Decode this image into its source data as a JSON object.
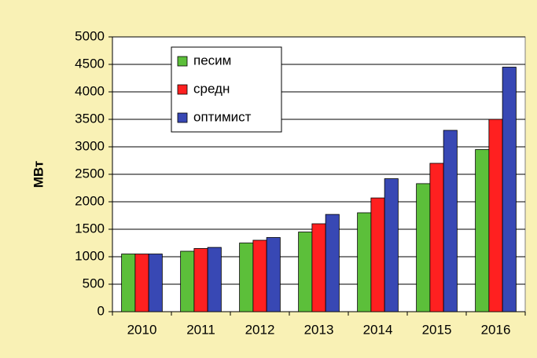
{
  "chart_data": {
    "type": "bar",
    "y_label": "МВт",
    "categories": [
      "2010",
      "2011",
      "2012",
      "2013",
      "2014",
      "2015",
      "2016"
    ],
    "series": [
      {
        "name": "песим",
        "color": "#5cbf3a",
        "values": [
          1050,
          1100,
          1250,
          1450,
          1800,
          2330,
          2950
        ]
      },
      {
        "name": "средн",
        "color": "#ff2020",
        "values": [
          1050,
          1150,
          1300,
          1600,
          2070,
          2700,
          3500
        ]
      },
      {
        "name": "оптимист",
        "color": "#3848b4",
        "values": [
          1050,
          1170,
          1350,
          1770,
          2420,
          3300,
          4450
        ]
      }
    ],
    "ylim": [
      0,
      5000
    ],
    "yticks": [
      0,
      500,
      1000,
      1500,
      2000,
      2500,
      3000,
      3500,
      4000,
      4500,
      5000
    ],
    "grid": true,
    "legend": "upper-left"
  }
}
